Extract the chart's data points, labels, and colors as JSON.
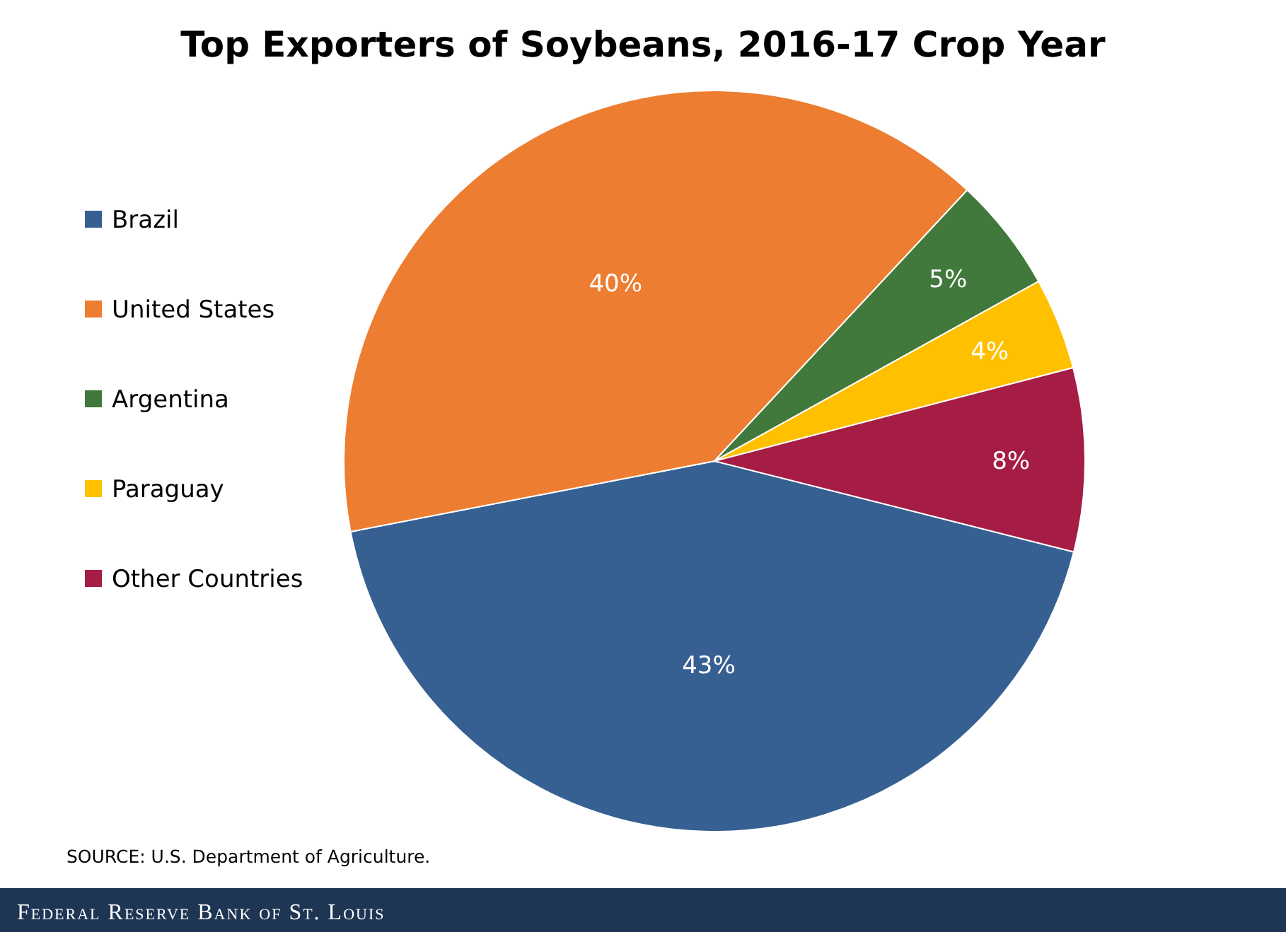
{
  "chart_data": {
    "type": "pie",
    "title": "Top Exporters of Soybeans, 2016-17 Crop Year",
    "categories": [
      "Brazil",
      "United States",
      "Argentina",
      "Paraguay",
      "Other Countries"
    ],
    "values": [
      43,
      40,
      5,
      4,
      8
    ],
    "value_labels": [
      "43%",
      "40%",
      "5%",
      "4%",
      "8%"
    ],
    "colors": [
      "#376092",
      "#ed7d31",
      "#41783b",
      "#ffc000",
      "#a51c45"
    ],
    "legend": "left",
    "annotations": [
      "SOURCE: U.S. Department of Agriculture.",
      "Federal Reserve Bank of St. Louis"
    ]
  }
}
